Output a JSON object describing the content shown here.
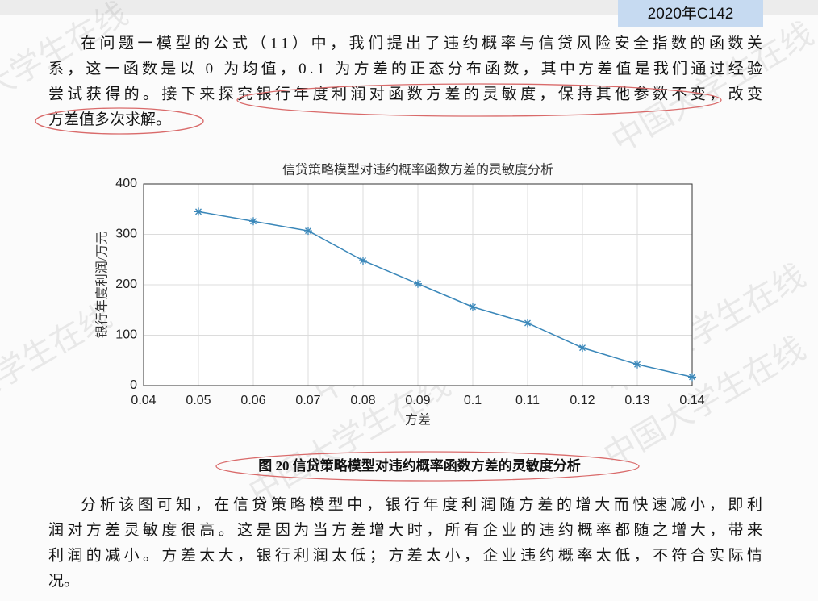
{
  "badge": "2020年C142",
  "watermark": "中国大学生在线",
  "paragraphs": [
    {
      "lines": [
        "在问题一模型的公式（11）中，我们提出了违约概率与信贷风险安全指数的函数关",
        "系，这一函数是以 0 为均值，0.1 为方差的正态分布函数，其中方差值是我们通过经验",
        "尝试获得的。接下来探究银行年度利润对函数方差的灵敏度，保持其他参数不变，改变",
        "方差值多次求解。"
      ]
    },
    {
      "lines": [
        "分析该图可知，在信贷策略模型中，银行年度利润随方差的增大而快速减小，即利",
        "润对方差灵敏度很高。这是因为当方差增大时，所有企业的违约概率都随之增大，带来",
        "利润的减小。方差太大，银行利润太低；方差太小，企业违约概率太低，不符合实际情",
        "况。"
      ]
    }
  ],
  "chart_data": {
    "type": "line",
    "title": "信贷策略模型对违约概率函数方差的灵敏度分析",
    "x_label": "方差",
    "y_label": "银行年度利润/万元",
    "x": [
      0.05,
      0.06,
      0.07,
      0.08,
      0.09,
      0.1,
      0.11,
      0.12,
      0.13,
      0.14
    ],
    "series": [
      {
        "name": "银行年度利润",
        "color": "#3a87b9",
        "values": [
          345,
          326,
          307,
          248,
          202,
          156,
          124,
          75,
          42,
          17
        ]
      }
    ],
    "xlim": [
      0.04,
      0.14
    ],
    "xticks": [
      0.04,
      0.05,
      0.06,
      0.07,
      0.08,
      0.09,
      0.1,
      0.11,
      0.12,
      0.13,
      0.14
    ],
    "ylim": [
      0,
      400
    ],
    "yticks": [
      0,
      100,
      200,
      300,
      400
    ],
    "grid": true
  },
  "caption": "图 20 信贷策略模型对违约概率函数方差的灵敏度分析"
}
